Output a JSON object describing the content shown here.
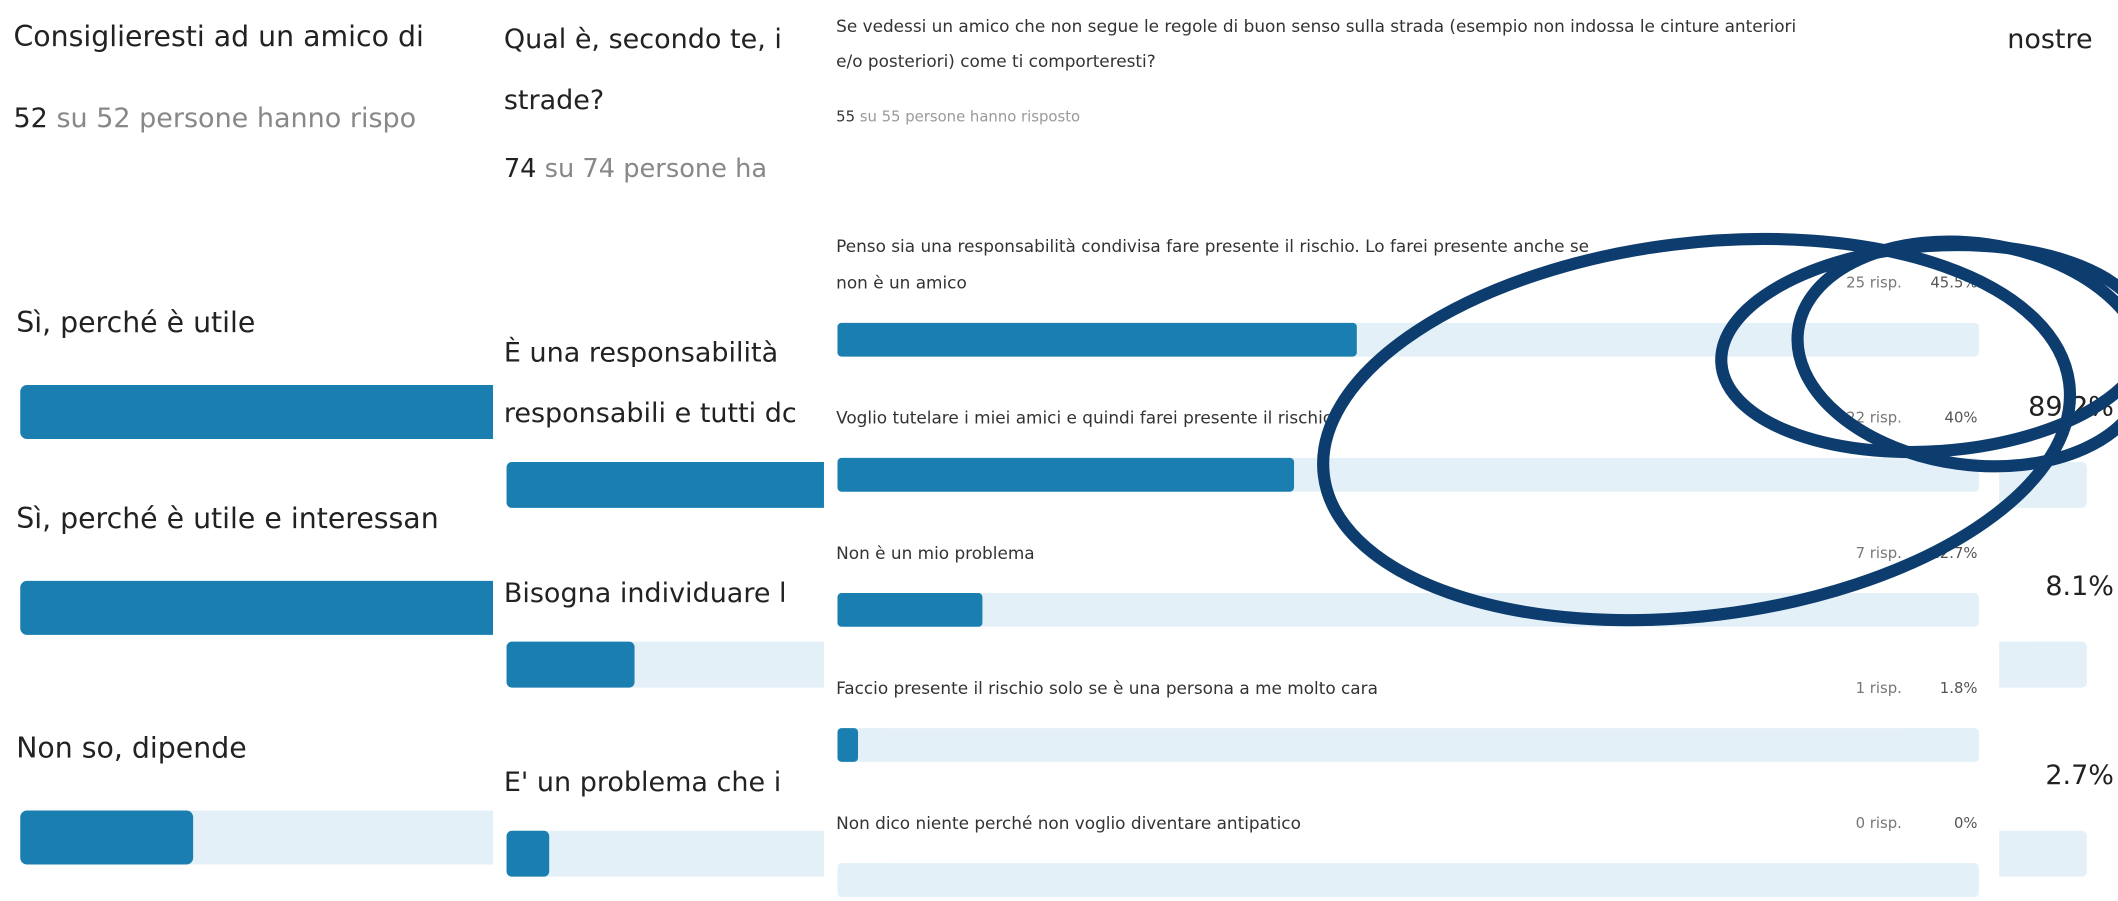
{
  "left": {
    "title": "Consiglieresti ad un amico di",
    "count": "52",
    "count_rest": " su 52 persone hanno rispo",
    "options": [
      "Sì, perché è utile",
      "Sì, perché è utile e interessan",
      "Non so, dipende"
    ]
  },
  "middle": {
    "title_lines": [
      "Qual è, secondo te, i",
      "strade?"
    ],
    "title_end": "nostre",
    "count": "74",
    "count_rest": " su 74 persone ha",
    "options": [
      [
        "È una responsabilità",
        "responsabili e tutti dc"
      ],
      [
        "Bisogna individuare l"
      ],
      [
        "E' un problema che i"
      ]
    ],
    "percents": [
      {
        "value": 89.2,
        "label": "89.2%"
      },
      {
        "value": 8.1,
        "label": "8.1%"
      },
      {
        "value": 2.7,
        "label": "2.7%"
      }
    ]
  },
  "right": {
    "title_lines": [
      "Se vedessi un amico che non segue le regole di buon senso sulla strada (esempio non indossa le cinture anteriori",
      "e/o posteriori) come ti comporteresti?"
    ],
    "count": "55",
    "count_rest": " su 55 persone hanno risposto",
    "options": [
      {
        "lines": [
          "Penso sia una responsabilità condivisa fare presente il rischio. Lo farei presente anche se",
          "non è un amico"
        ],
        "responses": "25 risp.",
        "percent": {
          "value": 45.5,
          "label": "45.5%"
        }
      },
      {
        "lines": [
          "Voglio tutelare i miei amici e quindi farei presente il rischio"
        ],
        "responses": "22 risp.",
        "percent": {
          "value": 40,
          "label": "40%"
        }
      },
      {
        "lines": [
          "Non è un mio problema"
        ],
        "responses": "7 risp.",
        "percent": {
          "value": 12.7,
          "label": "12.7%"
        }
      },
      {
        "lines": [
          "Faccio presente il rischio solo se è una persona a me molto cara"
        ],
        "responses": "1 risp.",
        "percent": {
          "value": 1.8,
          "label": "1.8%"
        }
      },
      {
        "lines": [
          "Non dico niente perché non voglio diventare antipatico"
        ],
        "responses": "0 risp.",
        "percent": {
          "value": 0,
          "label": "0%"
        }
      }
    ]
  }
}
